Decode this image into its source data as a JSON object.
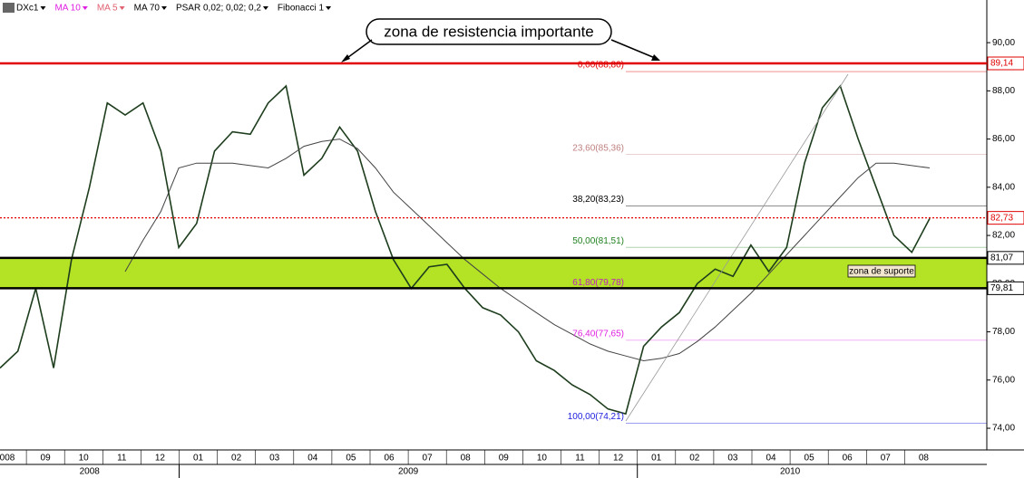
{
  "chart_data": {
    "type": "line",
    "legend": [
      {
        "label": "DXc1",
        "color": "#000000"
      },
      {
        "label": "MA 10",
        "color": "#e020e0"
      },
      {
        "label": "MA 5",
        "color": "#e06070"
      },
      {
        "label": "MA 70",
        "color": "#000000"
      },
      {
        "label": "PSAR 0,02; 0,02; 0,2",
        "color": "#000000"
      },
      {
        "label": "Fibonacci 1",
        "color": "#000000"
      }
    ],
    "series": [
      {
        "color": "#1d3d1d",
        "values": [
          76.5,
          77.2,
          79.8,
          76.5,
          81,
          84,
          87.5,
          87,
          87.5,
          85.5,
          81.5,
          82.5,
          85.5,
          86.3,
          86.2,
          87.5,
          88.2,
          84.5,
          85.2,
          86.5,
          85.5,
          83,
          81,
          79.8,
          80.7,
          80.8,
          79.8,
          79,
          78.7,
          78,
          76.8,
          76.4,
          75.8,
          75.4,
          74.8,
          74.6,
          77.4,
          78.2,
          78.8,
          80,
          80.6,
          80.3,
          81.6,
          80.5,
          81.5,
          85,
          87.3,
          88.2,
          86,
          84,
          82,
          81.3,
          82.7
        ]
      },
      {
        "color": "#444444",
        "values": [
          null,
          null,
          null,
          null,
          null,
          null,
          null,
          80.5,
          81.8,
          83,
          84.8,
          85,
          85,
          85,
          84.9,
          84.8,
          85.2,
          85.7,
          85.9,
          86,
          85.6,
          84.8,
          83.8,
          83.1,
          82.4,
          81.7,
          81,
          80.4,
          79.8,
          79.3,
          78.8,
          78.3,
          77.9,
          77.5,
          77.2,
          77,
          76.8,
          76.9,
          77.1,
          77.6,
          78.2,
          78.9,
          79.6,
          80.4,
          81.2,
          82,
          82.8,
          83.6,
          84.4,
          85,
          85,
          84.9,
          84.8
        ]
      }
    ],
    "ylim": [
      73.1,
      91.77
    ],
    "yticks": [
      {
        "value": 74,
        "label": "74,00"
      },
      {
        "value": 76,
        "label": "76,00"
      },
      {
        "value": 78,
        "label": "78,00"
      },
      {
        "value": 80,
        "label": "80,00"
      },
      {
        "value": 82,
        "label": "82,00"
      },
      {
        "value": 84,
        "label": "84,00"
      },
      {
        "value": 86,
        "label": "86,00"
      },
      {
        "value": 88,
        "label": "88,00"
      },
      {
        "value": 90,
        "label": "90,00"
      }
    ],
    "months": [
      "008",
      "09",
      "10",
      "11",
      "12",
      "01",
      "02",
      "03",
      "04",
      "05",
      "06",
      "07",
      "08",
      "09",
      "10",
      "11",
      "12",
      "01",
      "02",
      "03",
      "04",
      "05",
      "06",
      "07",
      "08"
    ],
    "years": [
      "2008",
      "2009",
      "2010"
    ],
    "price_lines": [
      {
        "value": 89.14,
        "label": "89,14",
        "color": "#e00000",
        "style": "solid"
      },
      {
        "value": 82.73,
        "label": "82,73",
        "color": "#e00000",
        "style": "dotted"
      },
      {
        "value": 81.07,
        "label": "81,07",
        "color": "#000000",
        "style": "solid"
      },
      {
        "value": 79.81,
        "label": "79,81",
        "color": "#000000",
        "style": "solid"
      }
    ],
    "support_band_color": "#b3e324",
    "fibonacci": [
      {
        "value": 88.8,
        "label": "0,00(88,80)",
        "color": "#e00000"
      },
      {
        "value": 85.36,
        "label": "23,60(85,36)",
        "color": "#c08080"
      },
      {
        "value": 83.23,
        "label": "38,20(83,23)",
        "color": "#000000"
      },
      {
        "value": 81.51,
        "label": "50,00(81,51)",
        "color": "#208020"
      },
      {
        "value": 79.78,
        "label": "61,80(79,78)",
        "color": "#c020c0"
      },
      {
        "value": 77.65,
        "label": "76,40(77,65)",
        "color": "#e020e0"
      },
      {
        "value": 74.21,
        "label": "100,00(74,21)",
        "color": "#2020e0"
      }
    ],
    "annotations": {
      "resistance": "zona de resistencia importante",
      "support": "zona de suporte"
    }
  }
}
